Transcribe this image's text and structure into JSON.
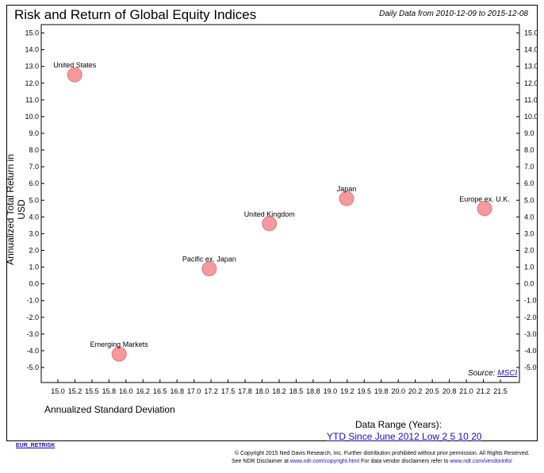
{
  "header": {
    "title": "Risk and Return of Global Equity Indices",
    "date_range": "Daily Data from 2010-12-09 to 2015-12-08"
  },
  "source": {
    "label": "Source:",
    "link": "MSCI"
  },
  "data_range": {
    "title": "Data Range (Years):",
    "options": [
      "YTD",
      "Since June 2012 Low",
      "2",
      "5",
      "10",
      "20"
    ]
  },
  "footer": {
    "ticker": "EUR_RETRISK",
    "copyright": "© Copyright 2015 Ned Davis Research, Inc. Further distribution prohibited without prior permission. All Rights Reserved.",
    "disclaimer_prefix": "See NDR Disclaimer at ",
    "disclaimer_link1": "www.ndr.com/copyright.html",
    "disclaimer_mid": "  For data vendor disclaimers refer to ",
    "disclaimer_link2": "www.ndr.com/vendorinfo/"
  },
  "chart_data": {
    "type": "scatter",
    "title": "Risk and Return of Global Equity Indices",
    "xlabel": "Annualized Standard Deviation",
    "ylabel": "Annualized Total Return in USD",
    "xlim": [
      14.75,
      21.75
    ],
    "ylim": [
      -5.9,
      15.5
    ],
    "x_ticks": [
      "15.0",
      "15.2",
      "15.5",
      "15.8",
      "16.0",
      "16.2",
      "16.5",
      "16.8",
      "17.0",
      "17.2",
      "17.5",
      "17.8",
      "18.0",
      "18.2",
      "18.5",
      "18.8",
      "19.0",
      "19.2",
      "19.5",
      "19.8",
      "20.0",
      "20.2",
      "20.5",
      "20.8",
      "21.0",
      "21.2",
      "21.5"
    ],
    "y_ticks": [
      "15.0",
      "14.0",
      "13.0",
      "12.0",
      "11.0",
      "10.0",
      "9.0",
      "8.0",
      "7.0",
      "6.0",
      "5.0",
      "4.0",
      "3.0",
      "2.0",
      "1.0",
      "0.0",
      "-1.0",
      "-2.0",
      "-3.0",
      "-4.0",
      "-5.0"
    ],
    "grid": false,
    "marker_color": "#f5999c",
    "marker_edge": "#e07b80",
    "points": [
      {
        "name": "United States",
        "x": 15.24,
        "y": 12.5
      },
      {
        "name": "Emerging Markets",
        "x": 15.89,
        "y": -4.2
      },
      {
        "name": "Pacific ex. Japan",
        "x": 17.21,
        "y": 0.9
      },
      {
        "name": "United Kingdom",
        "x": 18.09,
        "y": 3.6
      },
      {
        "name": "Japan",
        "x": 19.22,
        "y": 5.1
      },
      {
        "name": "Europe ex. U.K.",
        "x": 21.24,
        "y": 4.5
      }
    ]
  }
}
